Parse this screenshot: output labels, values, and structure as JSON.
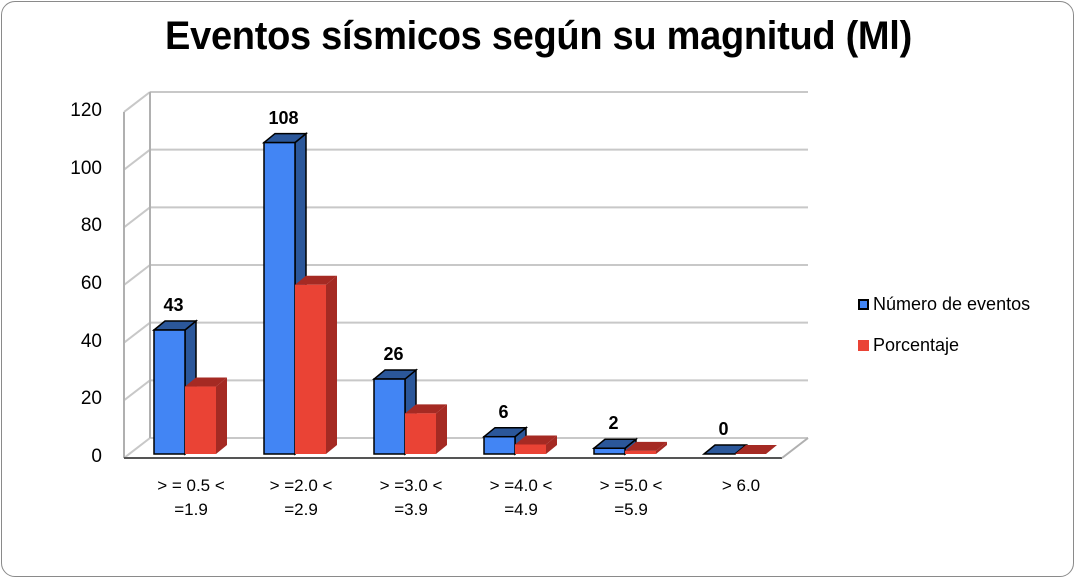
{
  "chart_data": {
    "type": "bar",
    "style": "3d-clustered-column",
    "title": "Eventos sísmicos según su magnitud (Ml)",
    "xlabel": "",
    "ylabel": "",
    "categories": [
      "> = 0.5 < =1.9",
      "> =2.0 < =2.9",
      "> =3.0 < =3.9",
      "> =4.0 < =4.9",
      "> =5.0 < =5.9",
      "> 6.0"
    ],
    "category_lines": [
      [
        "> = 0.5 <",
        "=1.9"
      ],
      [
        "> =2.0 <",
        "=2.9"
      ],
      [
        "> =3.0 <",
        "=3.9"
      ],
      [
        "> =4.0 <",
        "=4.9"
      ],
      [
        "> =5.0 <",
        "=5.9"
      ],
      [
        "> 6.0",
        ""
      ]
    ],
    "series": [
      {
        "name": "Número de eventos",
        "color": "#4285F4",
        "side_color": "#2B579A",
        "values": [
          43,
          108,
          26,
          6,
          2,
          0
        ],
        "data_labels": [
          "43",
          "108",
          "26",
          "6",
          "2",
          "0"
        ]
      },
      {
        "name": "Porcentaje",
        "color": "#EA4335",
        "side_color": "#A52A23",
        "values": [
          23.4,
          58.7,
          14.1,
          3.3,
          1.1,
          0
        ],
        "data_labels": null
      }
    ],
    "ylim": [
      0,
      120
    ],
    "yticks": [
      "0",
      "20",
      "40",
      "60",
      "80",
      "100",
      "120"
    ],
    "grid": true,
    "legend_position": "right"
  }
}
